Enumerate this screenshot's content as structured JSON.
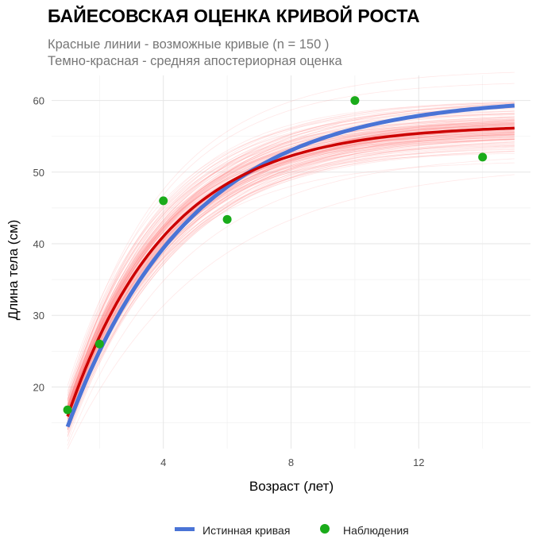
{
  "chart_data": {
    "type": "line",
    "title": "БАЙЕСОВСКАЯ ОЦЕНКА КРИВОЙ РОСТА",
    "subtitle_lines": [
      "Красные линии - возможные кривые (n = 150 )",
      "Темно-красная - средняя апостериорная оценка"
    ],
    "xlabel": "Возраст (лет)",
    "ylabel": "Длина тела (см)",
    "xlim": [
      0.5,
      15.5
    ],
    "ylim": [
      11.4,
      63.5
    ],
    "x_ticks": [
      4,
      8,
      12
    ],
    "x_tick_labels": [
      "4",
      "8",
      "12"
    ],
    "x_minor_ticks": [
      2,
      6,
      10,
      14
    ],
    "y_ticks": [
      20,
      30,
      40,
      50,
      60
    ],
    "y_tick_labels": [
      "20",
      "30",
      "40",
      "50",
      "60"
    ],
    "y_minor_ticks": [
      15,
      25,
      35,
      45,
      55
    ],
    "grid": true,
    "legend": {
      "placement": "bottom",
      "entries": [
        {
          "label": "Истинная кривая",
          "type": "line",
          "color": "#4a74d6"
        },
        {
          "label": "Наблюдения",
          "type": "point",
          "color": "#1aab1a"
        }
      ]
    },
    "x_range": [
      1,
      15
    ],
    "true_curve": {
      "model": "von Bertalanffy",
      "Linf": 60.5,
      "k": 0.26,
      "t0": -0.05,
      "color": "#4a74d6"
    },
    "posterior_mean": {
      "Linf": 56.6,
      "k": 0.32,
      "t0": -0.03,
      "color": "#cc0000"
    },
    "posterior_samples": {
      "n": 150,
      "Linf_sd": 2.0,
      "k_sd": 0.025,
      "color": "#ff8080"
    },
    "observations": {
      "x": [
        1,
        2,
        4,
        6,
        10,
        14
      ],
      "y": [
        16.8,
        26.0,
        46.0,
        43.4,
        60.0,
        52.1
      ],
      "color": "#1aab1a"
    }
  }
}
